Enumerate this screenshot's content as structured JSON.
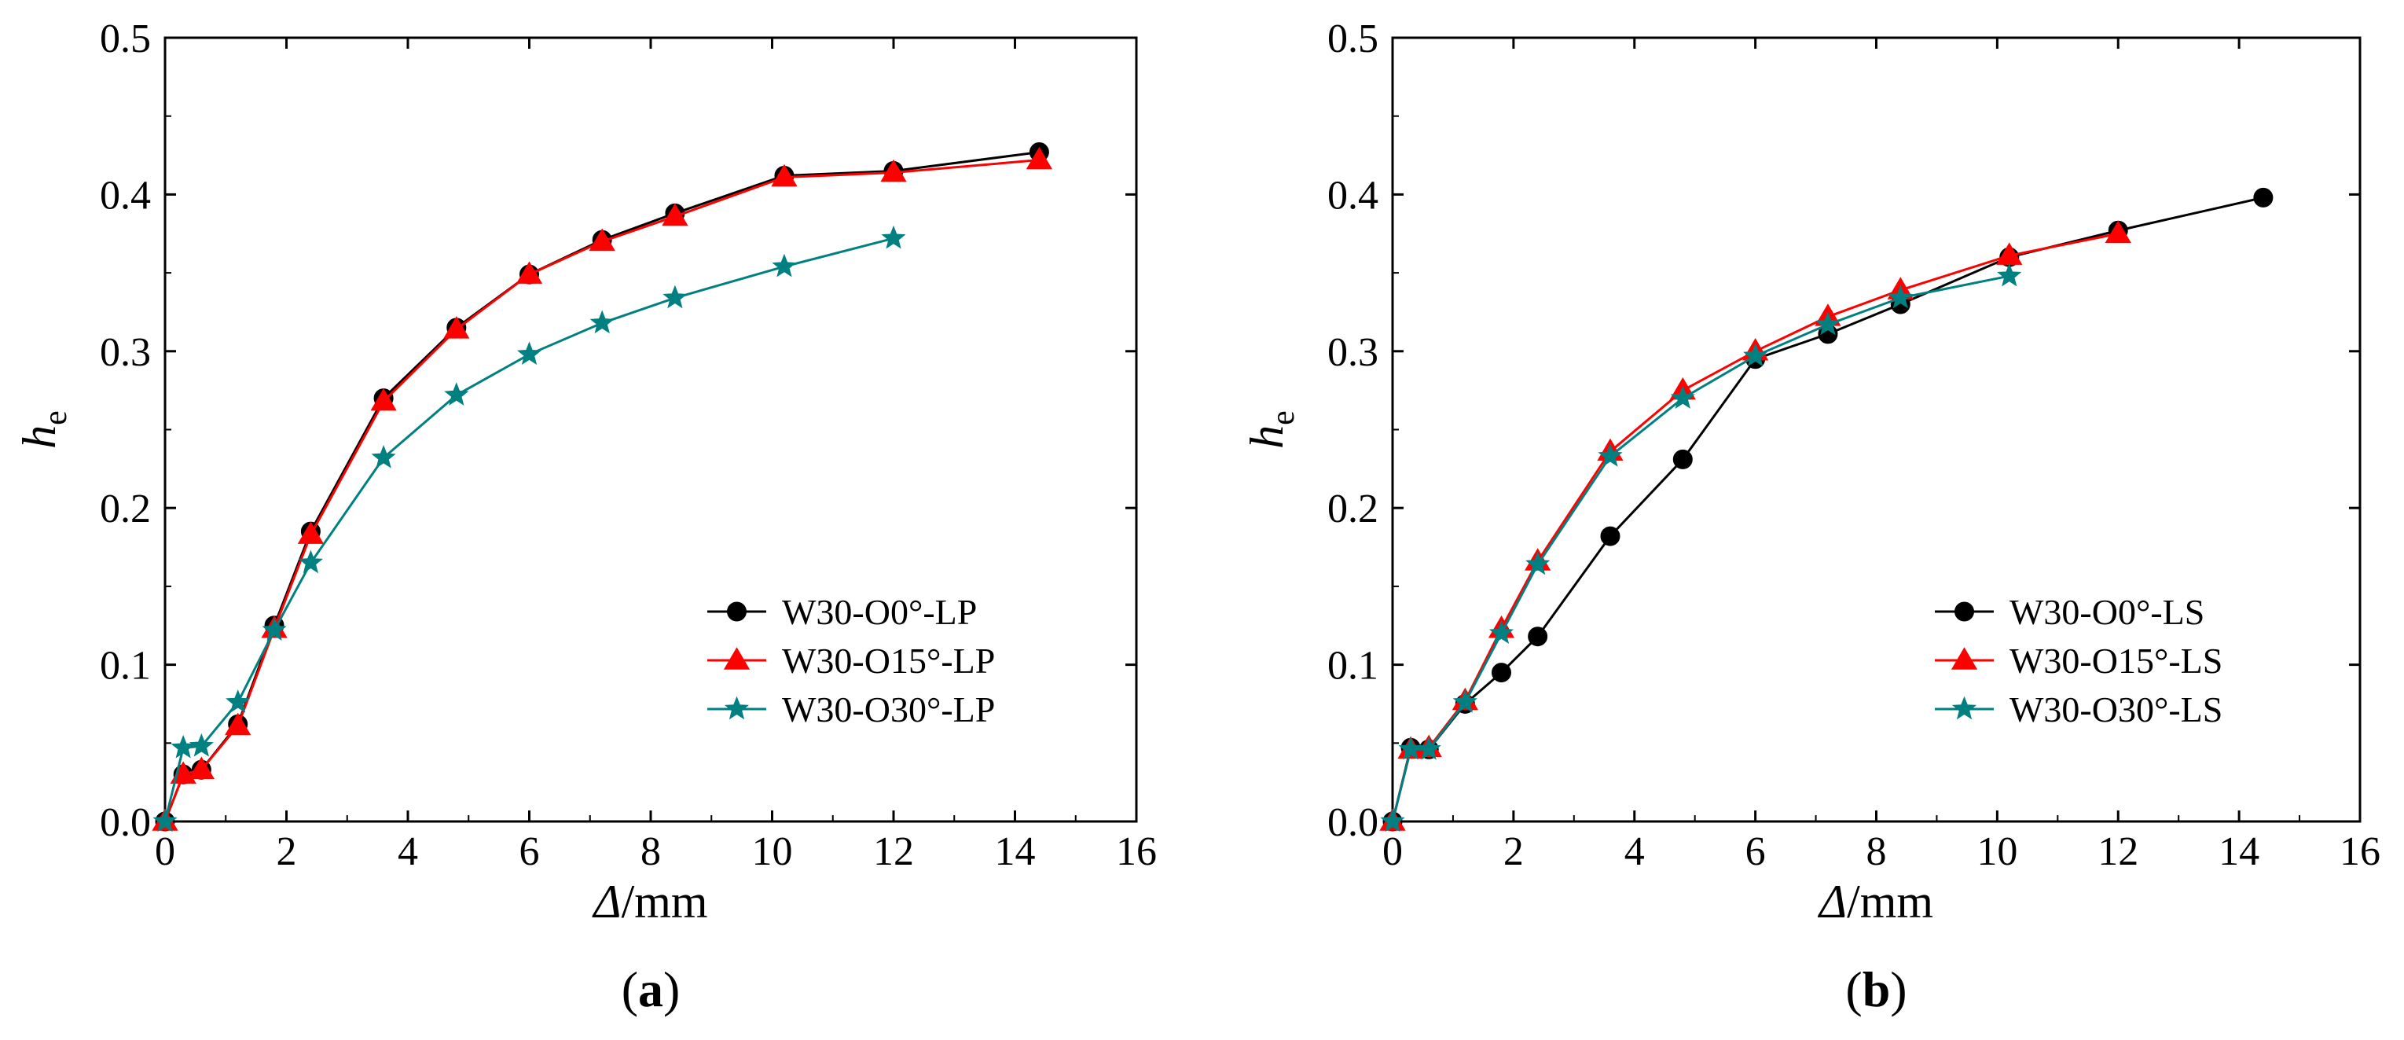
{
  "chart_data": [
    {
      "type": "line",
      "panel_label": "(a)",
      "panel_open": "(",
      "panel_letter": "a",
      "panel_close": ")",
      "xlabel_symbol": "Δ",
      "xlabel_unit": "/mm",
      "ylabel_symbol": "h",
      "ylabel_subscript": "e",
      "xlim": [
        0,
        16
      ],
      "ylim": [
        0,
        0.5
      ],
      "xticks": [
        "0",
        "2",
        "4",
        "6",
        "8",
        "10",
        "12",
        "14",
        "16"
      ],
      "yticks": [
        "0.0",
        "0.1",
        "0.2",
        "0.3",
        "0.4",
        "0.5"
      ],
      "legend_position": "lower-right",
      "series": [
        {
          "name": "W30-O0°-LP",
          "color": "#000000",
          "marker": "circle",
          "x": [
            0,
            0.3,
            0.6,
            1.2,
            1.8,
            2.4,
            3.6,
            4.8,
            6.0,
            7.2,
            8.4,
            10.2,
            12.0,
            14.4
          ],
          "y": [
            0,
            0.03,
            0.033,
            0.062,
            0.125,
            0.185,
            0.27,
            0.315,
            0.349,
            0.371,
            0.388,
            0.412,
            0.415,
            0.427
          ]
        },
        {
          "name": "W30-O15°-LP",
          "color": "#ff0000",
          "marker": "triangle",
          "x": [
            0,
            0.3,
            0.6,
            1.2,
            1.8,
            2.4,
            3.6,
            4.8,
            6.0,
            7.2,
            8.4,
            10.2,
            12.0,
            14.4
          ],
          "y": [
            0,
            0.03,
            0.033,
            0.061,
            0.123,
            0.183,
            0.268,
            0.314,
            0.349,
            0.37,
            0.386,
            0.411,
            0.414,
            0.422
          ]
        },
        {
          "name": "W30-O30°-LP",
          "color": "#008080",
          "marker": "star",
          "x": [
            0,
            0.3,
            0.6,
            1.2,
            1.8,
            2.4,
            3.6,
            4.8,
            6.0,
            7.2,
            8.4,
            10.2,
            12.0
          ],
          "y": [
            0,
            0.047,
            0.048,
            0.076,
            0.122,
            0.165,
            0.232,
            0.272,
            0.298,
            0.318,
            0.334,
            0.354,
            0.372
          ]
        }
      ]
    },
    {
      "type": "line",
      "panel_label": "(b)",
      "panel_open": "(",
      "panel_letter": "b",
      "panel_close": ")",
      "xlabel_symbol": "Δ",
      "xlabel_unit": "/mm",
      "ylabel_symbol": "h",
      "ylabel_subscript": "e",
      "xlim": [
        0,
        16
      ],
      "ylim": [
        0,
        0.5
      ],
      "xticks": [
        "0",
        "2",
        "4",
        "6",
        "8",
        "10",
        "12",
        "14",
        "16"
      ],
      "yticks": [
        "0.0",
        "0.1",
        "0.2",
        "0.3",
        "0.4",
        "0.5"
      ],
      "legend_position": "lower-right",
      "series": [
        {
          "name": "W30-O0°-LS",
          "color": "#000000",
          "marker": "circle",
          "x": [
            0,
            0.3,
            0.6,
            1.2,
            1.8,
            2.4,
            3.6,
            4.8,
            6.0,
            7.2,
            8.4,
            10.2,
            12.0,
            14.4
          ],
          "y": [
            0,
            0.047,
            0.046,
            0.075,
            0.095,
            0.118,
            0.182,
            0.231,
            0.295,
            0.311,
            0.33,
            0.36,
            0.377,
            0.398
          ]
        },
        {
          "name": "W30-O15°-LS",
          "color": "#ff0000",
          "marker": "triangle",
          "x": [
            0,
            0.3,
            0.6,
            1.2,
            1.8,
            2.4,
            3.6,
            4.8,
            6.0,
            7.2,
            8.4,
            10.2,
            12.0
          ],
          "y": [
            0,
            0.046,
            0.047,
            0.077,
            0.123,
            0.166,
            0.236,
            0.275,
            0.3,
            0.322,
            0.339,
            0.361,
            0.375
          ]
        },
        {
          "name": "W30-O30°-LS",
          "color": "#008080",
          "marker": "star",
          "x": [
            0,
            0.3,
            0.6,
            1.2,
            1.8,
            2.4,
            3.6,
            4.8,
            6.0,
            7.2,
            8.4,
            10.2
          ],
          "y": [
            0,
            0.046,
            0.046,
            0.076,
            0.12,
            0.164,
            0.233,
            0.27,
            0.297,
            0.317,
            0.334,
            0.348
          ]
        }
      ]
    }
  ]
}
